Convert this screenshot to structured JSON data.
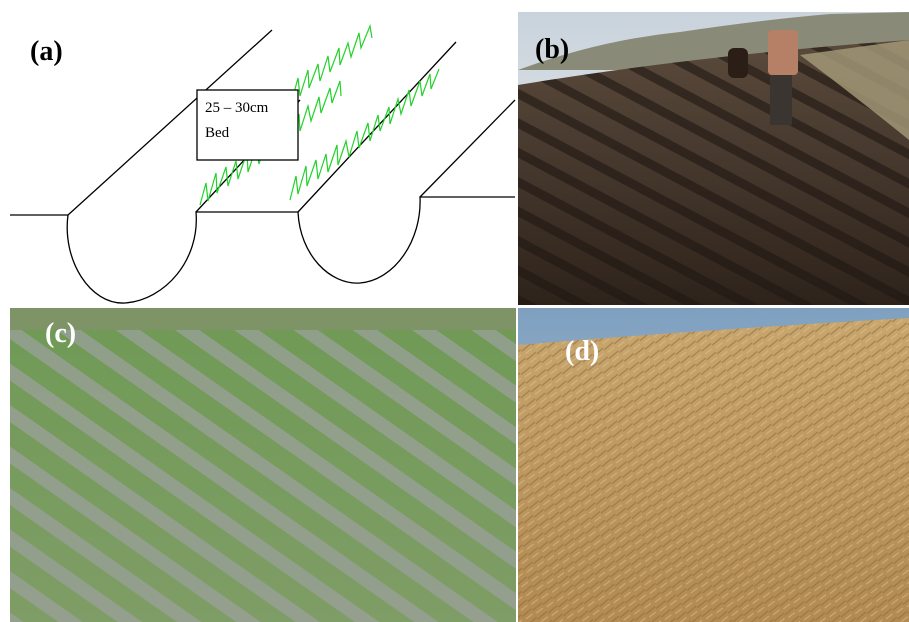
{
  "panels": [
    {
      "label": "(a)"
    },
    {
      "label": "(b)"
    },
    {
      "label": "(c)"
    },
    {
      "label": "(d)"
    }
  ],
  "diagram": {
    "bed_width": "25 – 30cm",
    "bed_label": "Bed"
  }
}
